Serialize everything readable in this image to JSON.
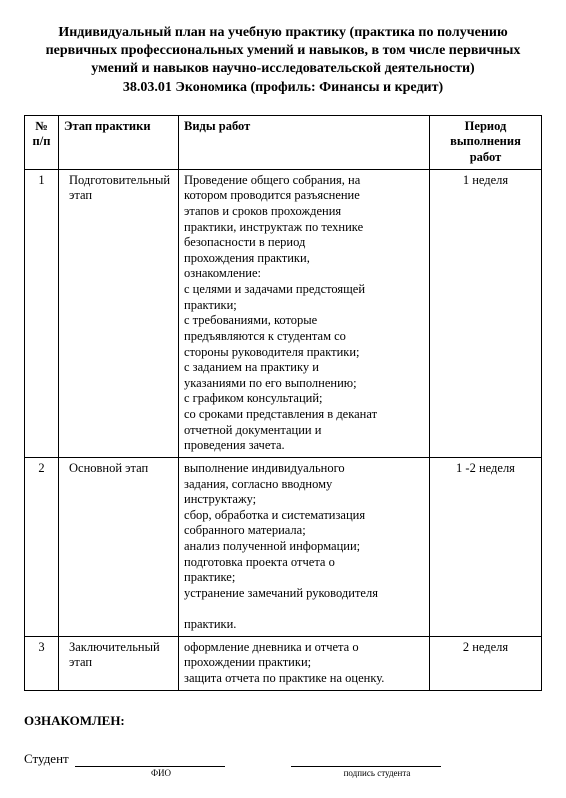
{
  "title_lines": [
    "Индивидуальный план на учебную практику (практика по получению",
    "первичных профессиональных умений и навыков, в том числе первичных",
    "умений и навыков научно-исследовательской деятельности)",
    "38.03.01 Экономика (профиль: Финансы и кредит)"
  ],
  "table": {
    "headers": {
      "num": "№\nп/п",
      "stage": "Этап практики",
      "works": "Виды работ",
      "period": "Период\nвыполнения работ"
    },
    "rows": [
      {
        "num": "1",
        "stage": "Подготовительный\nэтап",
        "works": "Проведение общего собрания, на\nкотором проводится разъяснение\nэтапов и сроков прохождения\nпрактики, инструктаж по технике\nбезопасности в период\nпрохождения практики,\nознакомление:\nс целями и задачами предстоящей\nпрактики;\nс требованиями, которые\nпредъявляются к студентам со\nстороны руководителя практики;\nс заданием на практику и\nуказаниями по его выполнению;\nс графиком консультаций;\nсо сроками представления в деканат\nотчетной документации и\nпроведения зачета.",
        "period": "1 неделя"
      },
      {
        "num": "2",
        "stage": "Основной этап",
        "works": "выполнение индивидуального\nзадания, согласно вводному\nинструктажу;\nсбор, обработка и систематизация\nсобранного материала;\nанализ полученной информации;\nподготовка проекта отчета о\nпрактике;\nустранение замечаний руководителя\n\nпрактики.",
        "period": "1 -2 неделя"
      },
      {
        "num": "3",
        "stage": "Заключительный этап",
        "works": "оформление дневника и отчета о\nпрохождении практики;\nзащита отчета по практике на оценку.",
        "period": "2 неделя"
      }
    ]
  },
  "footer": {
    "acknowledged": "ОЗНАКОМЛЕН:",
    "student_label": "Студент",
    "fio_label": "ФИО",
    "signature_label": "подпись студента"
  }
}
